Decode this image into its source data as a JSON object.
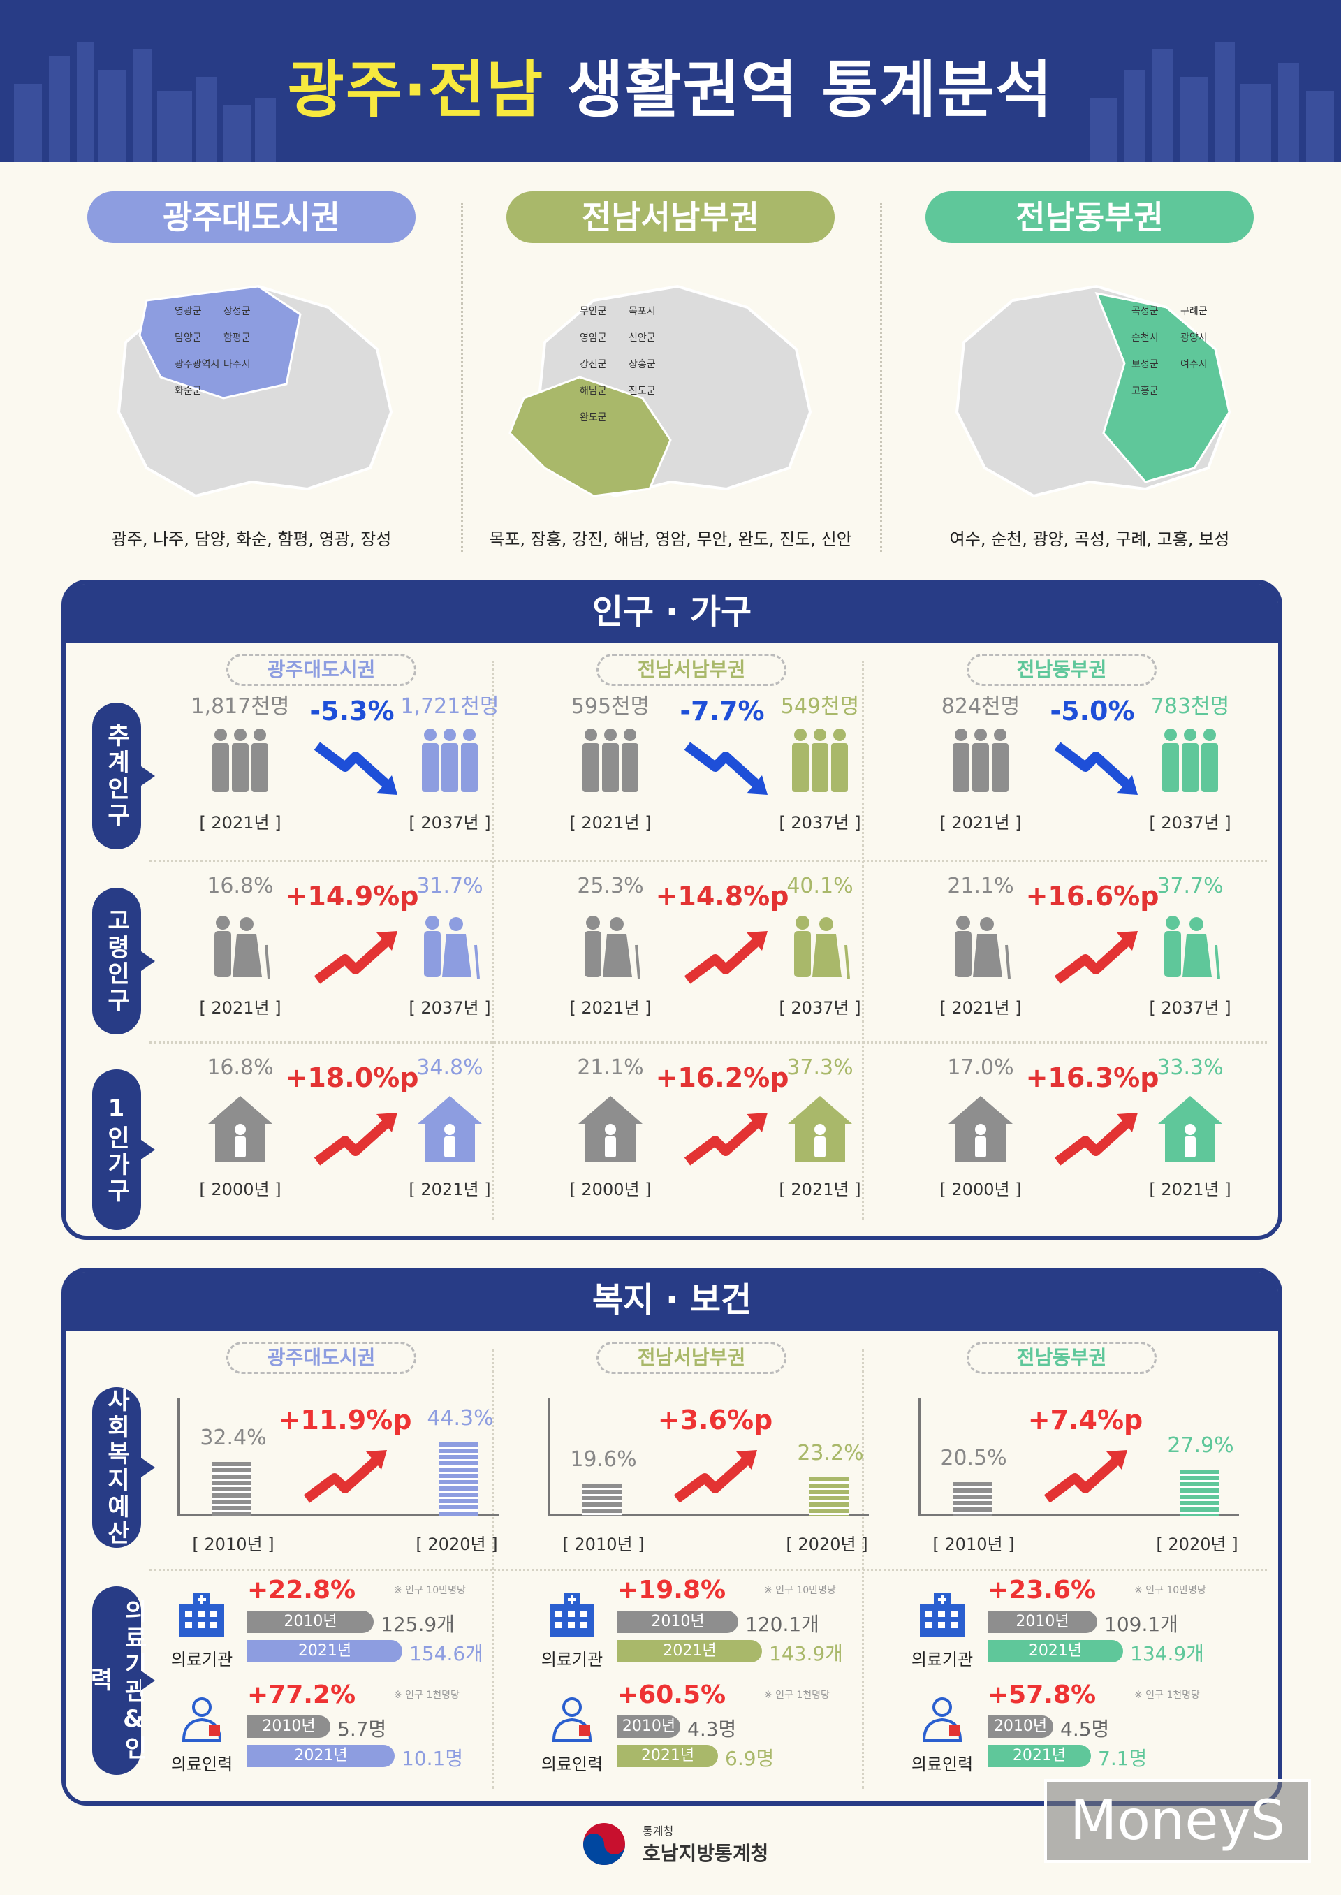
{
  "header": {
    "title_hl": "광주·전남",
    "title_rest": "생활권역 통계분석"
  },
  "regions": [
    {
      "name": "광주대도시권",
      "color": "#8d9de0",
      "towns": "광주, 나주, 담양, 화순, 함평, 영광, 장성",
      "map_labels": [
        "영광군",
        "장성군",
        "담양군",
        "함평군",
        "광주광역시",
        "나주시",
        "화순군"
      ]
    },
    {
      "name": "전남서남부권",
      "color": "#a9b86a",
      "towns": "목포, 장흥, 강진, 해남, 영암, 무안, 완도, 진도, 신안",
      "map_labels": [
        "무안군",
        "목포시",
        "영암군",
        "신안군",
        "강진군",
        "장흥군",
        "해남군",
        "진도군",
        "완도군"
      ]
    },
    {
      "name": "전남동부권",
      "color": "#5fc79a",
      "towns": "여수, 순천, 광양, 곡성, 구례, 고흥, 보성",
      "map_labels": [
        "곡성군",
        "구례군",
        "순천시",
        "광양시",
        "보성군",
        "여수시",
        "고흥군"
      ]
    }
  ],
  "panel1": {
    "title": "인구 · 가구",
    "rows": [
      {
        "label": "추계인구",
        "yr1": "[ 2021년 ]",
        "yr2": "[ 2037년 ]"
      },
      {
        "label": "고령인구",
        "yr1": "[ 2021년 ]",
        "yr2": "[ 2037년 ]"
      },
      {
        "label": "1인가구",
        "yr1": "[ 2000년 ]",
        "yr2": "[ 2021년 ]"
      }
    ],
    "cells": [
      [
        {
          "v1": "1,817천명",
          "chg": "-5.3%",
          "v2": "1,721천명"
        },
        {
          "v1": "595천명",
          "chg": "-7.7%",
          "v2": "549천명"
        },
        {
          "v1": "824천명",
          "chg": "-5.0%",
          "v2": "783천명"
        }
      ],
      [
        {
          "v1": "16.8%",
          "chg": "+14.9%p",
          "v2": "31.7%"
        },
        {
          "v1": "25.3%",
          "chg": "+14.8%p",
          "v2": "40.1%"
        },
        {
          "v1": "21.1%",
          "chg": "+16.6%p",
          "v2": "37.7%"
        }
      ],
      [
        {
          "v1": "16.8%",
          "chg": "+18.0%p",
          "v2": "34.8%"
        },
        {
          "v1": "21.1%",
          "chg": "+16.2%p",
          "v2": "37.3%"
        },
        {
          "v1": "17.0%",
          "chg": "+16.3%p",
          "v2": "33.3%"
        }
      ]
    ]
  },
  "panel2": {
    "title": "복지 · 보건",
    "row_labels": [
      "사회복지예산",
      "의료기관&인력"
    ],
    "welfare": [
      {
        "v1": "32.4%",
        "chg": "+11.9%p",
        "v2": "44.3%",
        "p1": 32.4,
        "p2": 44.3,
        "yr1": "[ 2010년 ]",
        "yr2": "[ 2020년 ]"
      },
      {
        "v1": "19.6%",
        "chg": "+3.6%p",
        "v2": "23.2%",
        "p1": 19.6,
        "p2": 23.2,
        "yr1": "[ 2010년 ]",
        "yr2": "[ 2020년 ]"
      },
      {
        "v1": "20.5%",
        "chg": "+7.4%p",
        "v2": "27.9%",
        "p1": 20.5,
        "p2": 27.9,
        "yr1": "[ 2010년 ]",
        "yr2": "[ 2020년 ]"
      }
    ],
    "medical": [
      {
        "inst": {
          "label": "의료기관",
          "chg": "+22.8%",
          "note": "※ 인구 10만명당",
          "y1": "2010년",
          "v1": "125.9개",
          "y2": "2021년",
          "v2": "154.6개"
        },
        "staff": {
          "label": "의료인력",
          "chg": "+77.2%",
          "note": "※ 인구 1천명당",
          "y1": "2010년",
          "v1": "5.7명",
          "y2": "2021년",
          "v2": "10.1명"
        }
      },
      {
        "inst": {
          "label": "의료기관",
          "chg": "+19.8%",
          "note": "※ 인구 10만명당",
          "y1": "2010년",
          "v1": "120.1개",
          "y2": "2021년",
          "v2": "143.9개"
        },
        "staff": {
          "label": "의료인력",
          "chg": "+60.5%",
          "note": "※ 인구 1천명당",
          "y1": "2010년",
          "v1": "4.3명",
          "y2": "2021년",
          "v2": "6.9명"
        }
      },
      {
        "inst": {
          "label": "의료기관",
          "chg": "+23.6%",
          "note": "※ 인구 10만명당",
          "y1": "2010년",
          "v1": "109.1개",
          "y2": "2021년",
          "v2": "134.9개"
        },
        "staff": {
          "label": "의료인력",
          "chg": "+57.8%",
          "note": "※ 인구 1천명당",
          "y1": "2010년",
          "v1": "4.5명",
          "y2": "2021년",
          "v2": "7.1명"
        }
      }
    ]
  },
  "footer": {
    "org_small": "통계청",
    "org": "호남지방통계청",
    "watermark": "MoneyS"
  },
  "colors": {
    "navy": "#283c86",
    "yellow": "#f7e93f",
    "gray": "#8e8e8e",
    "down": "#1e4fd8",
    "up": "#e33333"
  }
}
